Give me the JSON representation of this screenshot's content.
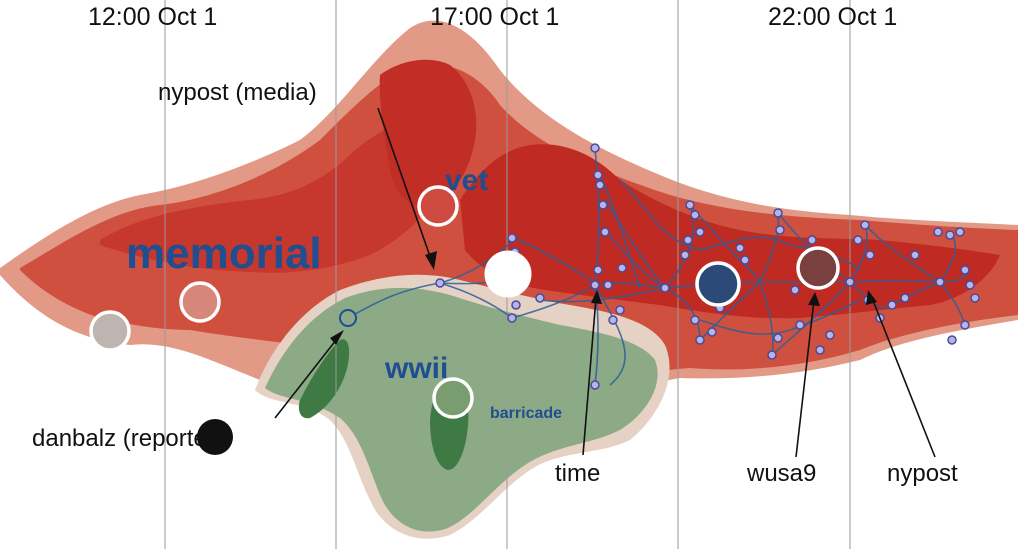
{
  "time_axis": {
    "ticks": [
      "12:00 Oct 1",
      "17:00 Oct 1",
      "22:00 Oct 1"
    ]
  },
  "topics": {
    "memorial": "memorial",
    "vet": "vet",
    "wwii": "wwii",
    "barricade": "barricade"
  },
  "annotations": {
    "nypost_media": "nypost (media)",
    "danbalz": "danbalz (reporter)",
    "time": "time",
    "wusa9": "wusa9",
    "nypost": "nypost"
  },
  "colors": {
    "outer_red": "#e29a86",
    "mid_red": "#d0503f",
    "dark_red": "#bf2a22",
    "light_green": "#8daa86",
    "dark_green": "#3f7a44",
    "cream": "#e6d2c4",
    "network_edge": "#2c5f9a",
    "node_fill": "#b8b5e6",
    "node_stroke": "#4a4a9a",
    "topic_text": "#1f4e91"
  },
  "marker_circles": [
    {
      "name": "grey-circle",
      "fill": "#bfb5b0"
    },
    {
      "name": "pink-circle-left",
      "fill": "#d6877a"
    },
    {
      "name": "vet-circle",
      "fill": "#cf4a40"
    },
    {
      "name": "white-circle",
      "fill": "#ffffff"
    },
    {
      "name": "wwii-circle",
      "fill": "#7a9d70"
    },
    {
      "name": "navy-circle",
      "fill": "#2c4a78"
    },
    {
      "name": "brown-circle",
      "fill": "#7a4040"
    },
    {
      "name": "black-circle",
      "fill": "#111111"
    }
  ]
}
